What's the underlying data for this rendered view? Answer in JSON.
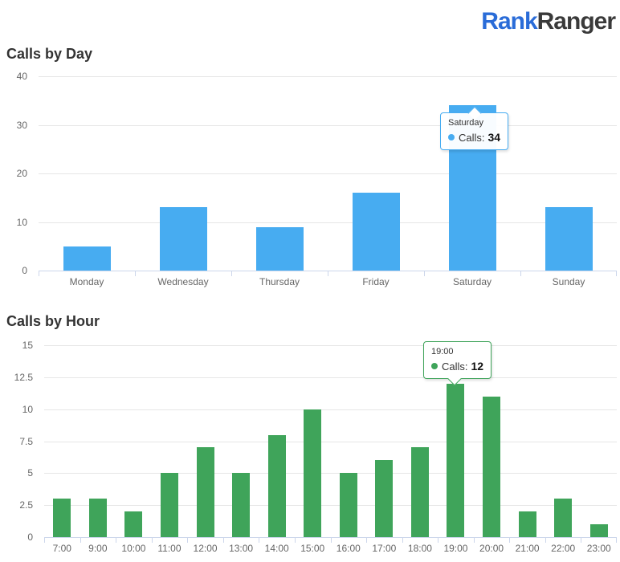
{
  "logo": {
    "part1": "Rank",
    "part2": "Ranger",
    "part1_color": "#2a6cd8",
    "part2_color": "#3a3a3a"
  },
  "chart_data": [
    {
      "type": "bar",
      "title": "Calls by Day",
      "categories": [
        "Monday",
        "Wednesday",
        "Thursday",
        "Friday",
        "Saturday",
        "Sunday"
      ],
      "values": [
        5,
        13,
        9,
        16,
        34,
        13
      ],
      "series_name": "Calls",
      "ylim": [
        0,
        40
      ],
      "yticks": [
        0,
        10,
        20,
        30,
        40
      ],
      "grid": true,
      "legend": false,
      "color": "#47acf1",
      "tooltip": {
        "category": "Saturday",
        "series_label": "Calls:",
        "value": "34"
      }
    },
    {
      "type": "bar",
      "title": "Calls by Hour",
      "categories": [
        "7:00",
        "9:00",
        "10:00",
        "11:00",
        "12:00",
        "13:00",
        "14:00",
        "15:00",
        "16:00",
        "17:00",
        "18:00",
        "19:00",
        "20:00",
        "21:00",
        "22:00",
        "23:00"
      ],
      "values": [
        3,
        3,
        2,
        5,
        7,
        5,
        8,
        10,
        5,
        6,
        7,
        12,
        11,
        2,
        3,
        1
      ],
      "series_name": "Calls",
      "ylim": [
        0,
        15
      ],
      "yticks": [
        0,
        2.5,
        5,
        7.5,
        10,
        12.5,
        15
      ],
      "grid": true,
      "legend": false,
      "color": "#3fa45a",
      "tooltip": {
        "category": "19:00",
        "series_label": "Calls:",
        "value": "12"
      }
    }
  ]
}
